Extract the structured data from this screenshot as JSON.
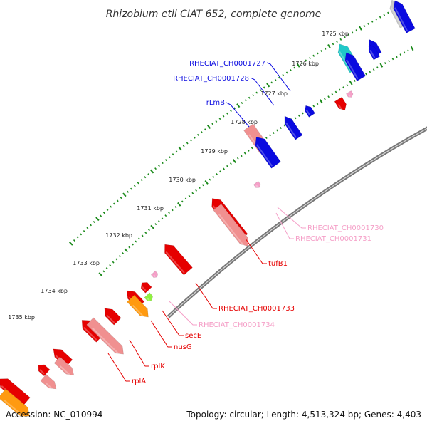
{
  "title": "Rhizobium etli CIAT 652, complete genome",
  "footer": {
    "accession": "Accession: NC_010994",
    "summary": "Topology: circular; Length: 4,513,324 bp; Genes: 4,403"
  },
  "kbp_ticks": [
    "1725 kbp",
    "1726 kbp",
    "1727 kbp",
    "1728 kbp",
    "1729 kbp",
    "1730 kbp",
    "1731 kbp",
    "1732 kbp",
    "1733 kbp",
    "1734 kbp",
    "1735 kbp"
  ],
  "colors": {
    "blue": "#0a0ae0",
    "red": "#e60000",
    "pink": "#f09090",
    "light_pink": "#f5a0c8",
    "teal": "#20c8c8",
    "orange": "#ff9a10",
    "green": "#90f040",
    "gray": "#c8c8c8",
    "backbone": "#777777",
    "tick_green": "#1a8a1a"
  },
  "gene_labels": [
    {
      "text": "RHECIAT_CH0001727",
      "color": "#0a0ae0"
    },
    {
      "text": "RHECIAT_CH0001728",
      "color": "#0a0ae0"
    },
    {
      "text": "rLmB",
      "color": "#0a0ae0"
    },
    {
      "text": "RHECIAT_CH0001730",
      "color": "#f5a0c8"
    },
    {
      "text": "RHECIAT_CH0001731",
      "color": "#f5a0c8"
    },
    {
      "text": "tufB1",
      "color": "#e60000"
    },
    {
      "text": "RHECIAT_CH0001733",
      "color": "#e60000"
    },
    {
      "text": "RHECIAT_CH0001734",
      "color": "#f5a0c8"
    },
    {
      "text": "secE",
      "color": "#e60000"
    },
    {
      "text": "nusG",
      "color": "#e60000"
    },
    {
      "text": "rplK",
      "color": "#e60000"
    },
    {
      "text": "rplA",
      "color": "#e60000"
    }
  ]
}
